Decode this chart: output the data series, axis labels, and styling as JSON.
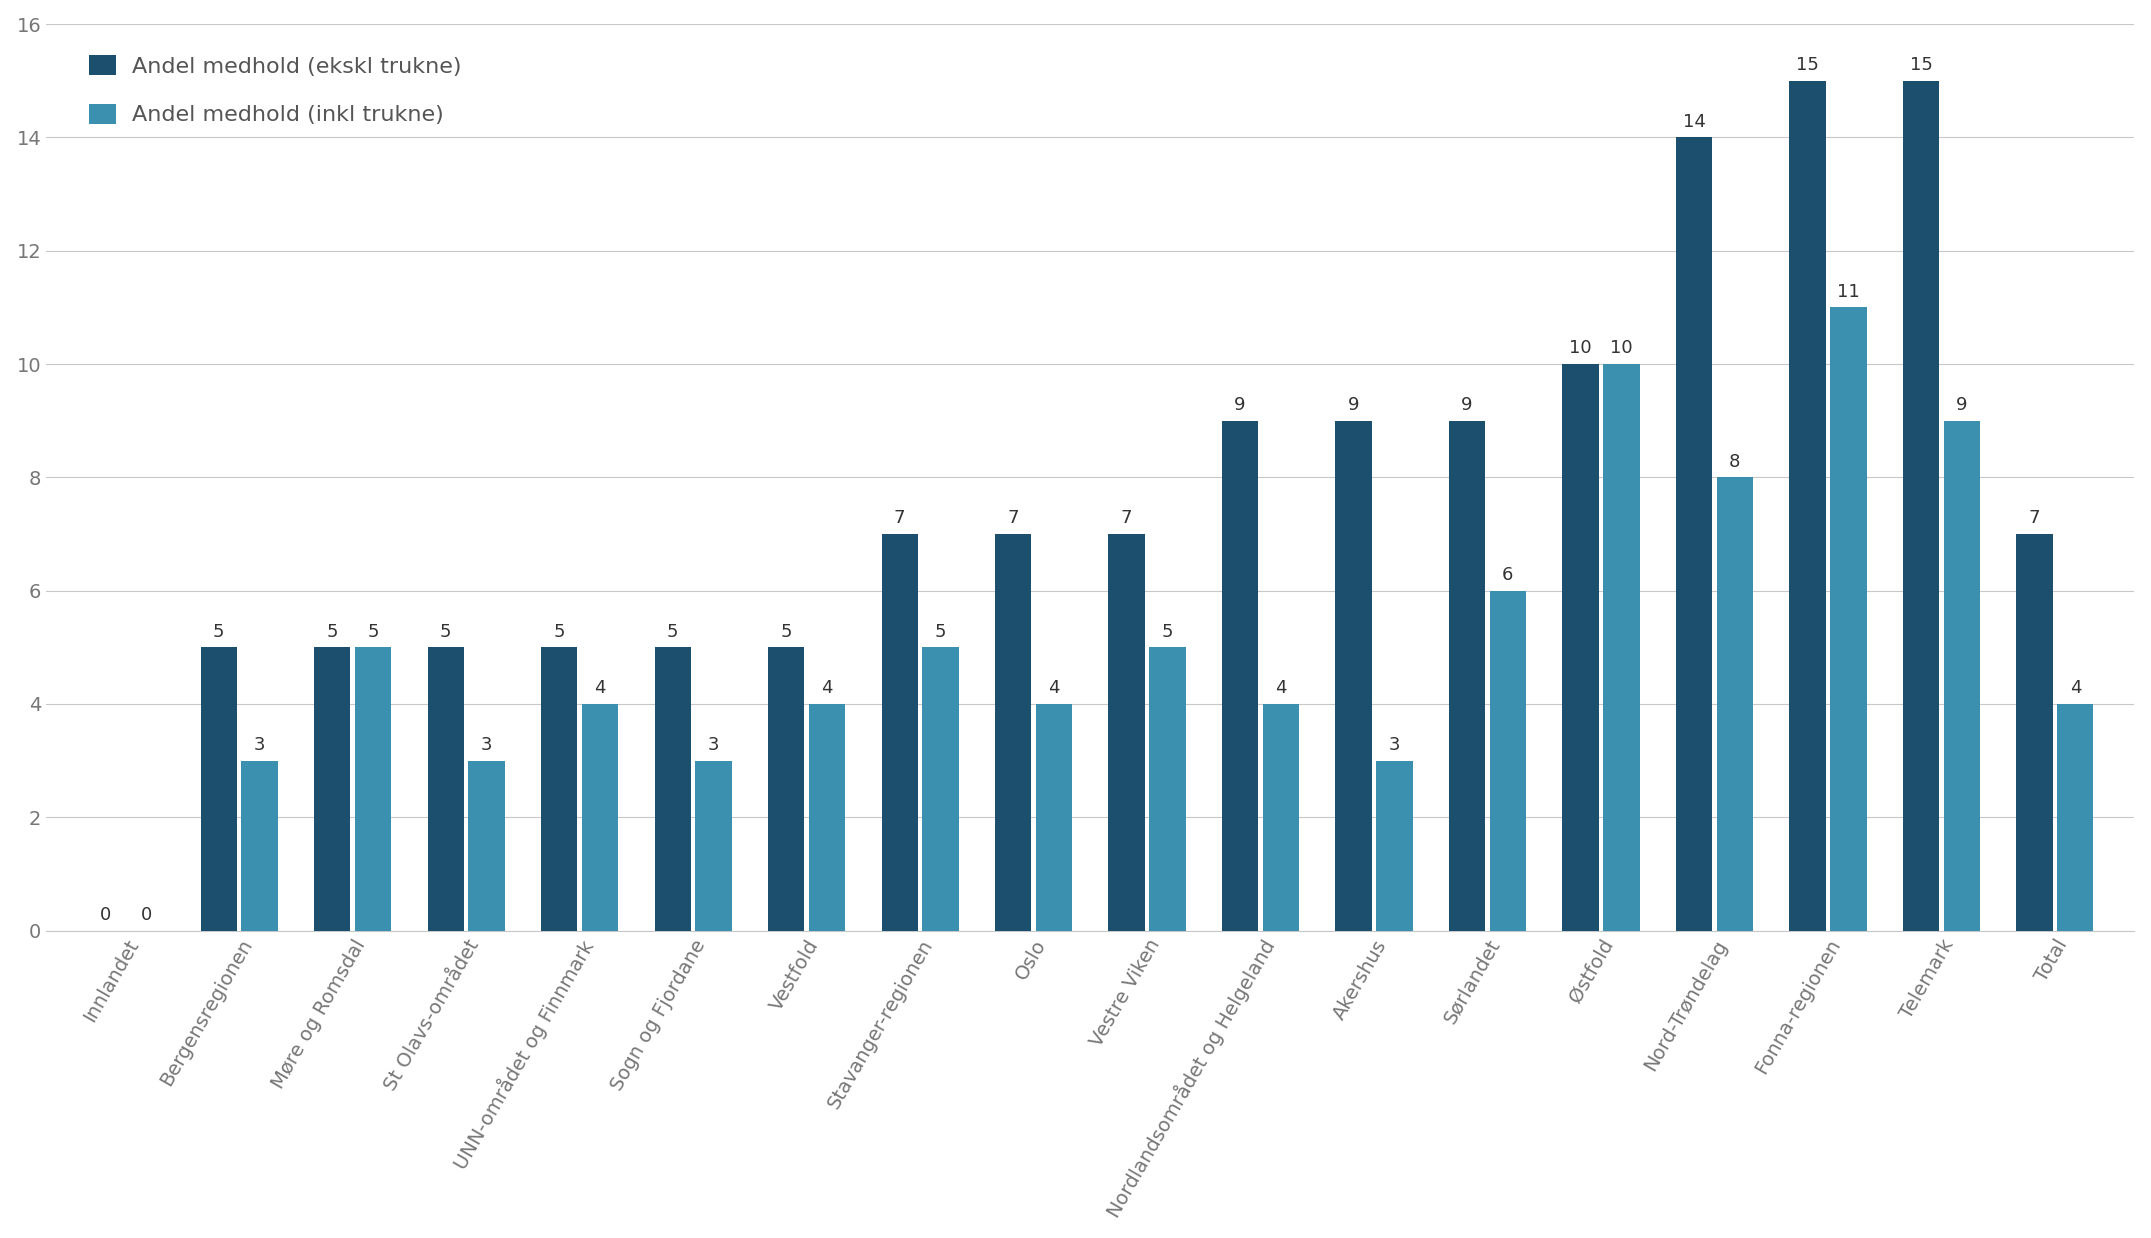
{
  "categories": [
    "Innlandet",
    "Bergensregionen",
    "Møre og Romsdal",
    "St Olavs-området",
    "UNN-området og Finnmark",
    "Sogn og Fjordane",
    "Vestfold",
    "Stavanger-regionen",
    "Oslo",
    "Vestre Viken",
    "Nordlandsområdet og Helgeland",
    "Akershus",
    "Sørlandet",
    "Østfold",
    "Nord-Trøndelag",
    "Fonna-regionen",
    "Telemark",
    "Total"
  ],
  "series_ekskl": [
    0,
    5,
    5,
    5,
    5,
    5,
    5,
    7,
    7,
    7,
    9,
    9,
    9,
    10,
    14,
    15,
    15,
    7
  ],
  "series_inkl": [
    0,
    3,
    5,
    3,
    4,
    3,
    4,
    5,
    4,
    5,
    4,
    3,
    6,
    10,
    8,
    11,
    9,
    4
  ],
  "color_ekskl": "#1c4e6e",
  "color_inkl": "#3b90b0",
  "legend_ekskl": "Andel medhold (ekskl trukne)",
  "legend_inkl": "Andel medhold (inkl trukne)",
  "ylim": [
    0,
    16
  ],
  "yticks": [
    0,
    2,
    4,
    6,
    8,
    10,
    12,
    14,
    16
  ],
  "bar_width": 0.32,
  "bar_gap": 0.04,
  "figsize": [
    21.51,
    12.38
  ],
  "dpi": 100,
  "background_color": "#ffffff",
  "plot_bg_color": "#ffffff",
  "grid_color": "#c8c8c8",
  "tick_color": "#777777",
  "tick_fontsize": 14,
  "legend_fontsize": 16,
  "annotation_fontsize": 13
}
